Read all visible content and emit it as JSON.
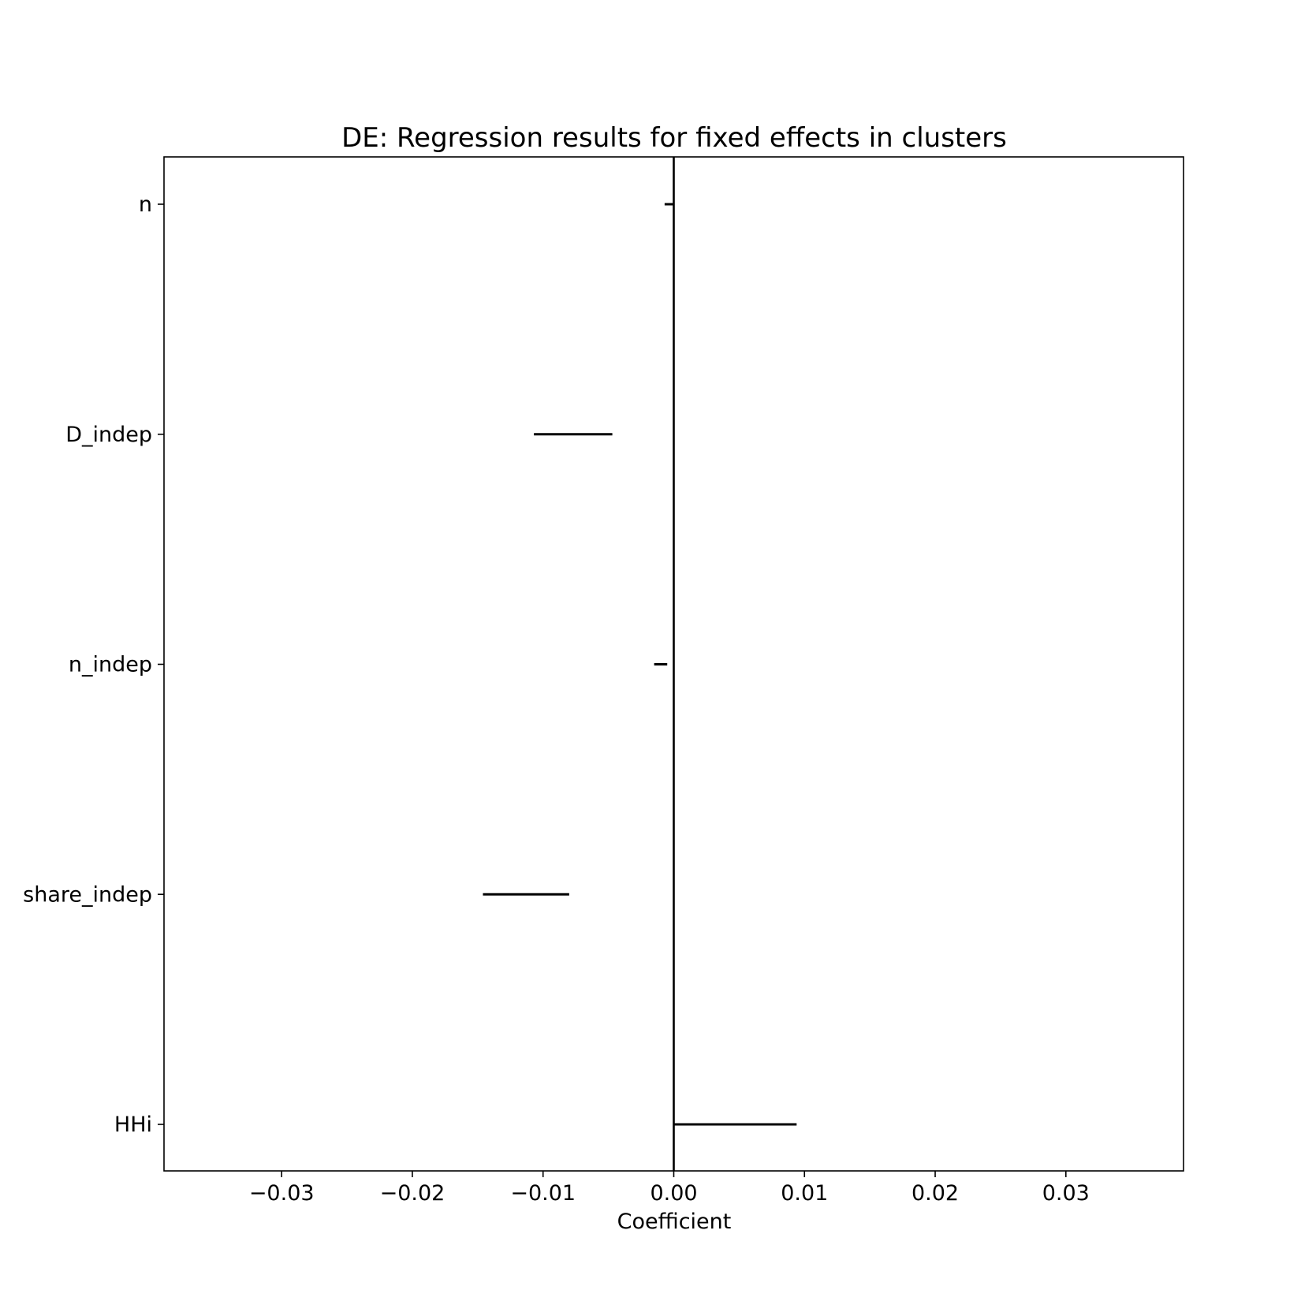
{
  "chart_data": {
    "type": "errorbar",
    "title": "DE: Regression results for fixed effects in clusters",
    "xlabel": "Coefficient",
    "ylabel": "",
    "xlim": [
      -0.039,
      0.039
    ],
    "xticks": [
      -0.03,
      -0.02,
      -0.01,
      0.0,
      0.01,
      0.02,
      0.03
    ],
    "xtick_labels": [
      "−0.03",
      "−0.02",
      "−0.01",
      "0.00",
      "0.01",
      "0.02",
      "0.03"
    ],
    "categories": [
      "n",
      "D_indep",
      "n_indep",
      "share_indep",
      "HHi"
    ],
    "intervals": [
      {
        "name": "n",
        "low": -0.0007,
        "high": 0.0
      },
      {
        "name": "D_indep",
        "low": -0.0107,
        "high": -0.0047
      },
      {
        "name": "n_indep",
        "low": -0.0015,
        "high": -0.0005
      },
      {
        "name": "share_indep",
        "low": -0.0146,
        "high": -0.008
      },
      {
        "name": "HHi",
        "low": 0.0,
        "high": 0.0094
      }
    ],
    "reference_line": 0.0,
    "grid": false,
    "colors": {
      "line": "#000000",
      "background": "#ffffff"
    }
  }
}
